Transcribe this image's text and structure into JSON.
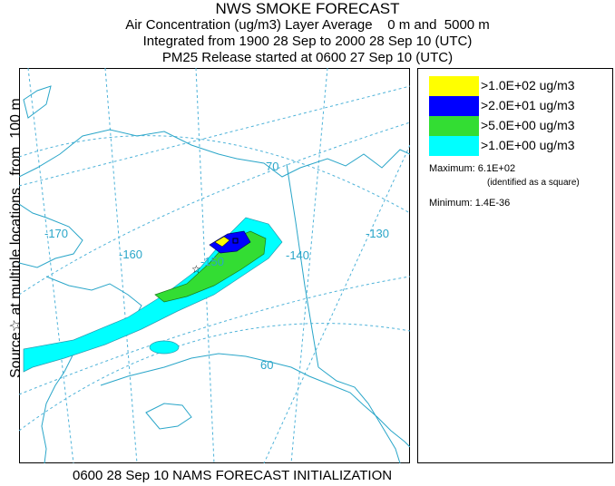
{
  "title": {
    "line1": "NWS SMOKE FORECAST",
    "line2": "Air Concentration (ug/m3) Layer Average    0 m and  5000 m",
    "line3": "Integrated from 1900 28 Sep to 2000 28 Sep 10 (UTC)",
    "line4": "PM25 Release started at 0600 27 Sep 10 (UTC)"
  },
  "sidebar_text": "Source☆ at multiple locations   from  100 m",
  "footer_text": "0600 28 Sep 10 NAMS FORECAST INITIALIZATION",
  "map": {
    "longitude_labels": [
      "-170",
      "-160",
      "-150",
      "-140",
      "-130"
    ],
    "latitude_labels": [
      "70",
      "60"
    ],
    "graticule_color": "#4fb3d9",
    "coast_color": "#2aa6c9"
  },
  "legend": {
    "items": [
      {
        "label": ">1.0E+02 ug/m3",
        "color": "#ffff00"
      },
      {
        "label": ">2.0E+01 ug/m3",
        "color": "#0000ff"
      },
      {
        "label": ">5.0E+00 ug/m3",
        "color": "#33dd33"
      },
      {
        "label": ">1.0E+00 ug/m3",
        "color": "#00ffff"
      }
    ],
    "maximum": "Maximum: 6.1E+02",
    "maximum_note": "(identified as a square)",
    "minimum": "Minimum: 1.4E-36"
  }
}
